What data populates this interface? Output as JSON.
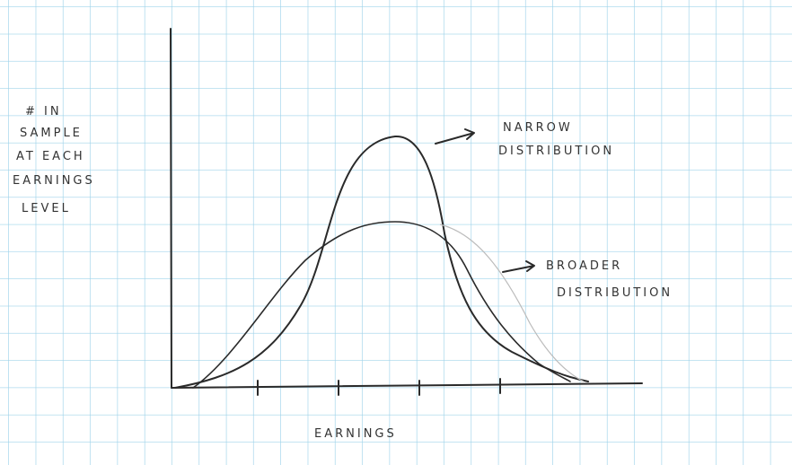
{
  "labels": {
    "y_axis": [
      "# IN",
      "SAMPLE",
      "AT EACH",
      "EARNINGS",
      "LEVEL"
    ],
    "x_axis": "EARNINGS"
  },
  "annotations": {
    "narrow": [
      "NARROW",
      "DISTRIBUTION"
    ],
    "broad": [
      "BROADER",
      "DISTRIBUTION"
    ]
  }
}
